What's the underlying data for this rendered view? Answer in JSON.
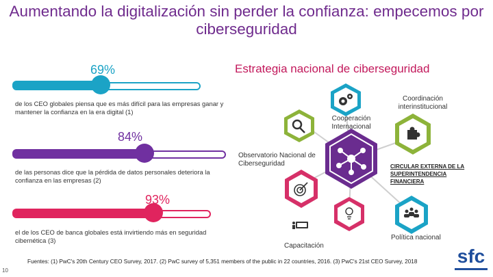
{
  "title": "Aumentando la digitalización sin perder la confianza: empecemos por ciberseguridad",
  "strategy_title": "Estrategia nacional de ciberseguridad",
  "stats": [
    {
      "percent_text": "69%",
      "value": 0.69,
      "color": "#1ba3c6",
      "text": "de los CEO globales piensa que es más difícil para las empresas ganar y mantener la confianza en la era digital (1)"
    },
    {
      "percent_text": "84%",
      "value": 0.84,
      "color": "#7030a0",
      "text": "de las personas dice que la pérdida de datos personales deteriora la confianza en las empresas (2)"
    },
    {
      "percent_text": "93%",
      "value": 0.93,
      "color": "#e0245e",
      "text": "el de los CEO de banca globales está invirtiendo más en seguridad cibernética (3)"
    }
  ],
  "pillars": {
    "coordinacion": "Coordinación interinstitucional",
    "cooperacion": "Cooperación Internacional",
    "observatorio": "Observatorio Nacional de Ciberseguridad",
    "circular": "CIRCULAR EXTERNA DE LA SUPERINTENDENCIA FINANCIERA",
    "capacitacion": "Capacitación",
    "politica": "Política nacional"
  },
  "footer": "Fuentes: (1) PwC's 20th Century CEO Survey, 2017. (2) PwC survey of 5,351 members of the public in 22 countries, 2016. (3) PwC's 21st CEO Survey, 2018",
  "page_number": "10",
  "logo_text": "sfc",
  "colors": {
    "purple": "#6a2c8f",
    "teal": "#1ba3c6",
    "green": "#8db33a",
    "pink": "#d63068"
  }
}
